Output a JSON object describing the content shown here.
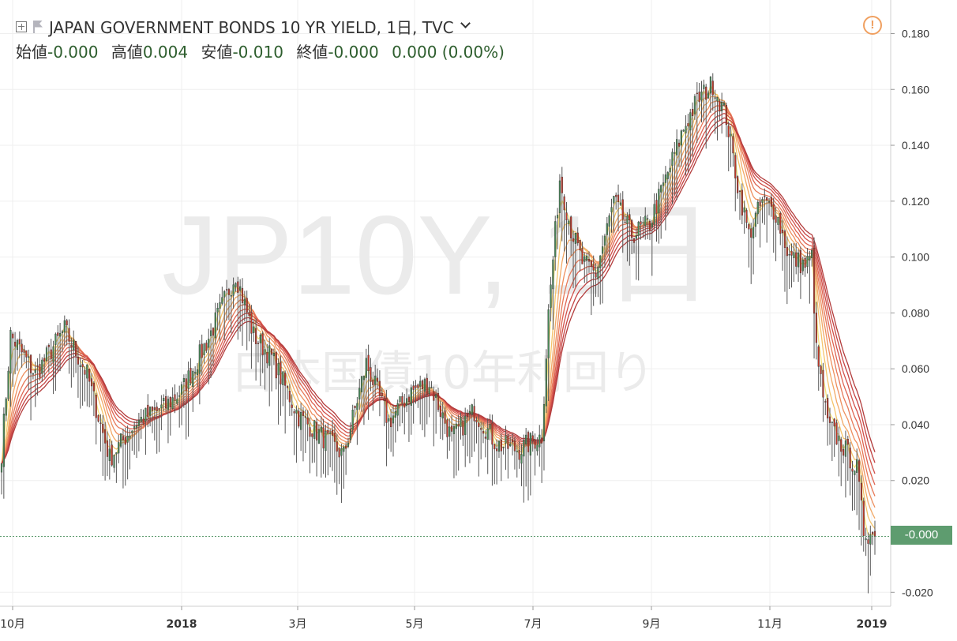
{
  "header": {
    "title": "JAPAN GOVERNMENT BONDS 10 YR YIELD, 1日, TVC",
    "ohlc": [
      {
        "label": "始値",
        "value": "-0.000"
      },
      {
        "label": "高値",
        "value": "0.004"
      },
      {
        "label": "安値",
        "value": "-0.010"
      },
      {
        "label": "終値",
        "value": "-0.000"
      }
    ],
    "change": "0.000 (0.00%)"
  },
  "watermark": {
    "symbol": "JP10Y, 1日",
    "name": "日本国債10年利回り"
  },
  "price_tag": "-0.000",
  "alert_glyph": "!",
  "colors": {
    "up": "#4a8a5a",
    "down": "#c0392b",
    "wick": "#555555",
    "ribbon": [
      "#f7e27a",
      "#f5c46a",
      "#f2a865",
      "#ee8f5e",
      "#e77958",
      "#de6452",
      "#d1514b",
      "#c44444",
      "#b33c3c"
    ]
  },
  "chart_data": {
    "type": "candlestick",
    "y_ticks": [
      "0.180",
      "0.160",
      "0.140",
      "0.120",
      "0.100",
      "0.080",
      "0.060",
      "0.040",
      "0.020",
      "-0.020"
    ],
    "ylim": [
      -0.025,
      0.192
    ],
    "x_ticks": [
      "10月",
      "2018",
      "3月",
      "5月",
      "7月",
      "9月",
      "11月",
      "2019"
    ],
    "last_price": -0.0,
    "anchors": [
      [
        0,
        0.03
      ],
      [
        4,
        0.072
      ],
      [
        15,
        0.058
      ],
      [
        28,
        0.074
      ],
      [
        38,
        0.058
      ],
      [
        48,
        0.028
      ],
      [
        60,
        0.041
      ],
      [
        72,
        0.046
      ],
      [
        80,
        0.052
      ],
      [
        92,
        0.071
      ],
      [
        104,
        0.094
      ],
      [
        112,
        0.072
      ],
      [
        120,
        0.064
      ],
      [
        132,
        0.043
      ],
      [
        142,
        0.036
      ],
      [
        152,
        0.029
      ],
      [
        162,
        0.062
      ],
      [
        172,
        0.041
      ],
      [
        182,
        0.052
      ],
      [
        190,
        0.055
      ],
      [
        200,
        0.035
      ],
      [
        210,
        0.045
      ],
      [
        220,
        0.033
      ],
      [
        230,
        0.031
      ],
      [
        240,
        0.036
      ],
      [
        243,
        0.08
      ],
      [
        248,
        0.128
      ],
      [
        253,
        0.11
      ],
      [
        258,
        0.098
      ],
      [
        264,
        0.094
      ],
      [
        272,
        0.12
      ],
      [
        280,
        0.108
      ],
      [
        288,
        0.112
      ],
      [
        296,
        0.13
      ],
      [
        303,
        0.146
      ],
      [
        309,
        0.156
      ],
      [
        316,
        0.162
      ],
      [
        322,
        0.15
      ],
      [
        327,
        0.126
      ],
      [
        332,
        0.108
      ],
      [
        338,
        0.12
      ],
      [
        344,
        0.116
      ],
      [
        350,
        0.1
      ],
      [
        357,
        0.097
      ],
      [
        360,
        0.1
      ],
      [
        362,
        0.066
      ],
      [
        367,
        0.04
      ],
      [
        374,
        0.032
      ],
      [
        380,
        0.024
      ],
      [
        383,
        0.002
      ],
      [
        388,
        0.0
      ]
    ]
  }
}
